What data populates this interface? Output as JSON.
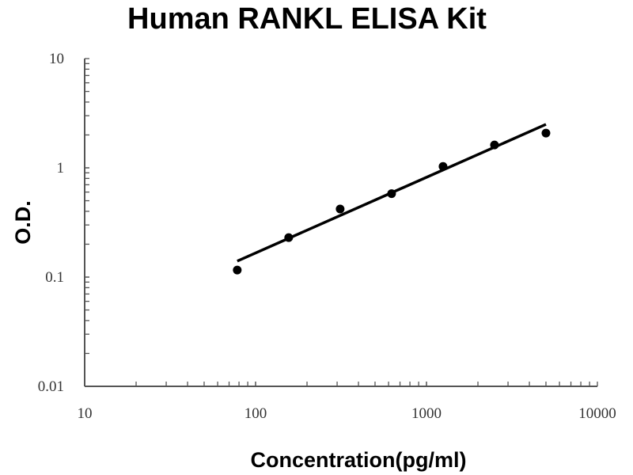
{
  "chart_data": {
    "type": "scatter",
    "title": "Human RANKL ELISA Kit",
    "xlabel": "Concentration(pg/ml)",
    "ylabel": "O.D.",
    "xscale": "log",
    "yscale": "log",
    "xlim": [
      10,
      10000
    ],
    "ylim": [
      0.01,
      10
    ],
    "xticks": [
      "10",
      "100",
      "1000",
      "10000"
    ],
    "yticks": [
      "0.01",
      "0.1",
      "1",
      "10"
    ],
    "grid": false,
    "points": {
      "x": [
        78.125,
        156.25,
        312.5,
        625,
        1250,
        2500,
        5000
      ],
      "y": [
        0.116,
        0.23,
        0.42,
        0.58,
        1.03,
        1.62,
        2.08
      ]
    },
    "fit_line": {
      "x": [
        78.125,
        5000
      ],
      "y": [
        0.14,
        2.5
      ]
    },
    "colors": {
      "points": "#000000",
      "line": "#000000",
      "axis": "#555555"
    }
  }
}
